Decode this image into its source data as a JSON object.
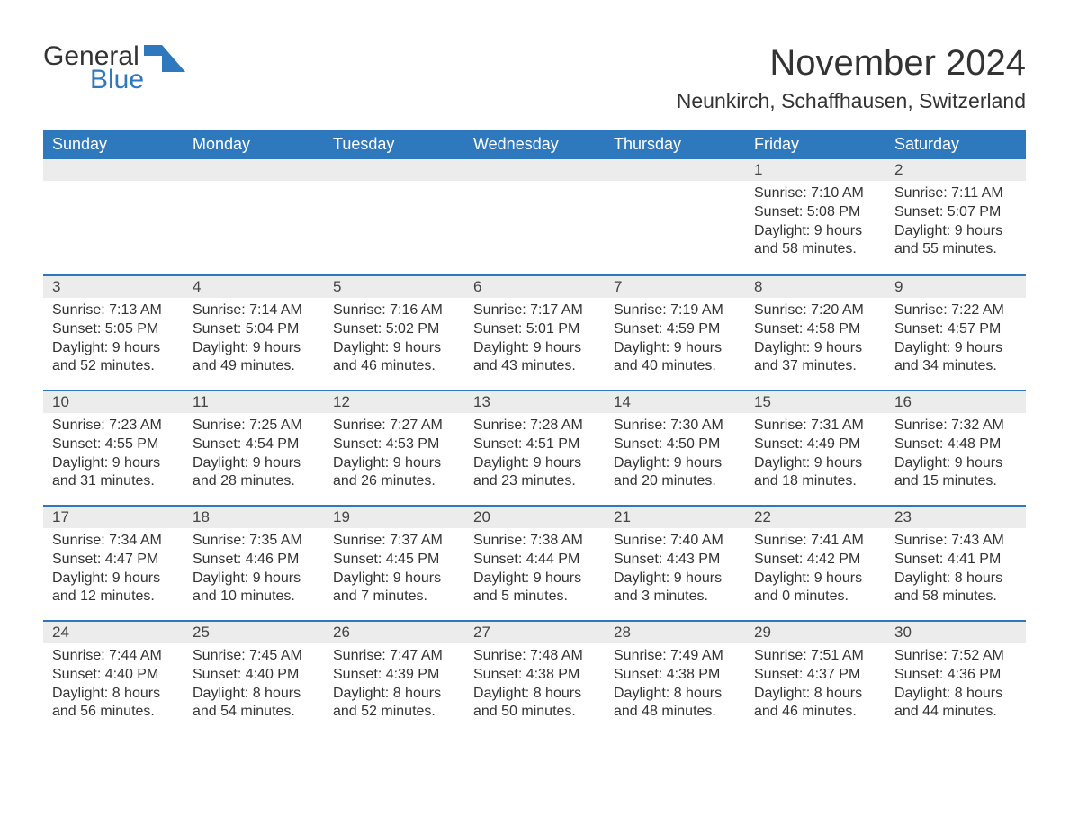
{
  "logo": {
    "word1": "General",
    "word2": "Blue",
    "icon_color": "#2e78bd"
  },
  "title": "November 2024",
  "location": "Neunkirch, Schaffhausen, Switzerland",
  "colors": {
    "header_bg": "#2e78bd",
    "header_text": "#ffffff",
    "daynum_bg": "#ececec",
    "week_divider": "#2e78bd",
    "body_text": "#333333"
  },
  "weekdays": [
    "Sunday",
    "Monday",
    "Tuesday",
    "Wednesday",
    "Thursday",
    "Friday",
    "Saturday"
  ],
  "weeks": [
    [
      null,
      null,
      null,
      null,
      null,
      {
        "n": "1",
        "sunrise": "7:10 AM",
        "sunset": "5:08 PM",
        "dl_h": "9",
        "dl_m": "58"
      },
      {
        "n": "2",
        "sunrise": "7:11 AM",
        "sunset": "5:07 PM",
        "dl_h": "9",
        "dl_m": "55"
      }
    ],
    [
      {
        "n": "3",
        "sunrise": "7:13 AM",
        "sunset": "5:05 PM",
        "dl_h": "9",
        "dl_m": "52"
      },
      {
        "n": "4",
        "sunrise": "7:14 AM",
        "sunset": "5:04 PM",
        "dl_h": "9",
        "dl_m": "49"
      },
      {
        "n": "5",
        "sunrise": "7:16 AM",
        "sunset": "5:02 PM",
        "dl_h": "9",
        "dl_m": "46"
      },
      {
        "n": "6",
        "sunrise": "7:17 AM",
        "sunset": "5:01 PM",
        "dl_h": "9",
        "dl_m": "43"
      },
      {
        "n": "7",
        "sunrise": "7:19 AM",
        "sunset": "4:59 PM",
        "dl_h": "9",
        "dl_m": "40"
      },
      {
        "n": "8",
        "sunrise": "7:20 AM",
        "sunset": "4:58 PM",
        "dl_h": "9",
        "dl_m": "37"
      },
      {
        "n": "9",
        "sunrise": "7:22 AM",
        "sunset": "4:57 PM",
        "dl_h": "9",
        "dl_m": "34"
      }
    ],
    [
      {
        "n": "10",
        "sunrise": "7:23 AM",
        "sunset": "4:55 PM",
        "dl_h": "9",
        "dl_m": "31"
      },
      {
        "n": "11",
        "sunrise": "7:25 AM",
        "sunset": "4:54 PM",
        "dl_h": "9",
        "dl_m": "28"
      },
      {
        "n": "12",
        "sunrise": "7:27 AM",
        "sunset": "4:53 PM",
        "dl_h": "9",
        "dl_m": "26"
      },
      {
        "n": "13",
        "sunrise": "7:28 AM",
        "sunset": "4:51 PM",
        "dl_h": "9",
        "dl_m": "23"
      },
      {
        "n": "14",
        "sunrise": "7:30 AM",
        "sunset": "4:50 PM",
        "dl_h": "9",
        "dl_m": "20"
      },
      {
        "n": "15",
        "sunrise": "7:31 AM",
        "sunset": "4:49 PM",
        "dl_h": "9",
        "dl_m": "18"
      },
      {
        "n": "16",
        "sunrise": "7:32 AM",
        "sunset": "4:48 PM",
        "dl_h": "9",
        "dl_m": "15"
      }
    ],
    [
      {
        "n": "17",
        "sunrise": "7:34 AM",
        "sunset": "4:47 PM",
        "dl_h": "9",
        "dl_m": "12"
      },
      {
        "n": "18",
        "sunrise": "7:35 AM",
        "sunset": "4:46 PM",
        "dl_h": "9",
        "dl_m": "10"
      },
      {
        "n": "19",
        "sunrise": "7:37 AM",
        "sunset": "4:45 PM",
        "dl_h": "9",
        "dl_m": "7"
      },
      {
        "n": "20",
        "sunrise": "7:38 AM",
        "sunset": "4:44 PM",
        "dl_h": "9",
        "dl_m": "5"
      },
      {
        "n": "21",
        "sunrise": "7:40 AM",
        "sunset": "4:43 PM",
        "dl_h": "9",
        "dl_m": "3"
      },
      {
        "n": "22",
        "sunrise": "7:41 AM",
        "sunset": "4:42 PM",
        "dl_h": "9",
        "dl_m": "0"
      },
      {
        "n": "23",
        "sunrise": "7:43 AM",
        "sunset": "4:41 PM",
        "dl_h": "8",
        "dl_m": "58"
      }
    ],
    [
      {
        "n": "24",
        "sunrise": "7:44 AM",
        "sunset": "4:40 PM",
        "dl_h": "8",
        "dl_m": "56"
      },
      {
        "n": "25",
        "sunrise": "7:45 AM",
        "sunset": "4:40 PM",
        "dl_h": "8",
        "dl_m": "54"
      },
      {
        "n": "26",
        "sunrise": "7:47 AM",
        "sunset": "4:39 PM",
        "dl_h": "8",
        "dl_m": "52"
      },
      {
        "n": "27",
        "sunrise": "7:48 AM",
        "sunset": "4:38 PM",
        "dl_h": "8",
        "dl_m": "50"
      },
      {
        "n": "28",
        "sunrise": "7:49 AM",
        "sunset": "4:38 PM",
        "dl_h": "8",
        "dl_m": "48"
      },
      {
        "n": "29",
        "sunrise": "7:51 AM",
        "sunset": "4:37 PM",
        "dl_h": "8",
        "dl_m": "46"
      },
      {
        "n": "30",
        "sunrise": "7:52 AM",
        "sunset": "4:36 PM",
        "dl_h": "8",
        "dl_m": "44"
      }
    ]
  ],
  "labels": {
    "sunrise": "Sunrise: ",
    "sunset": "Sunset: ",
    "daylight_pre": "Daylight: ",
    "hours": " hours",
    "and": "and ",
    "minutes": " minutes."
  }
}
